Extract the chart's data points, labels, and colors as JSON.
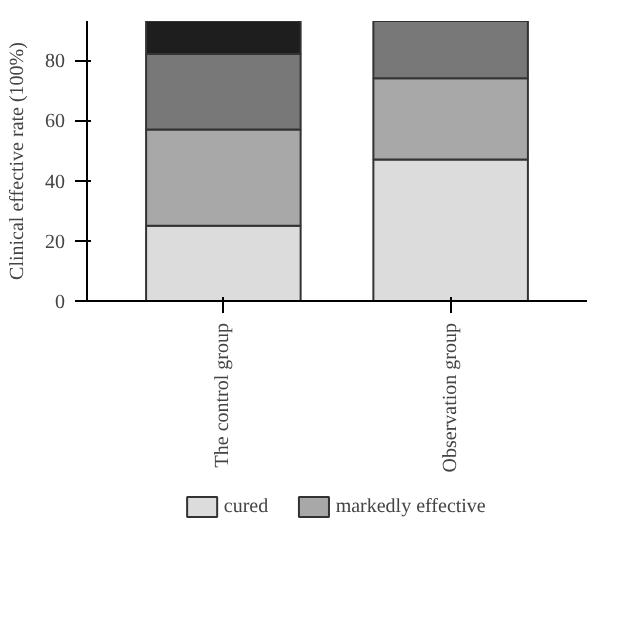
{
  "chart_data": {
    "type": "bar",
    "stacked": true,
    "ylabel": "Clinical effective rate (100%)",
    "categories": [
      "The control group",
      "Observation group"
    ],
    "series": [
      {
        "name": "cured",
        "color": "#dcdcdc",
        "values": [
          25,
          47
        ]
      },
      {
        "name": "markedly effective",
        "color": "#a8a8a8",
        "values": [
          32,
          27
        ]
      },
      {
        "color": "#787878",
        "values": [
          25,
          19
        ]
      },
      {
        "color": "#1e1e1e",
        "values": [
          11,
          null
        ]
      }
    ],
    "ylim": [
      0,
      93
    ],
    "yticks": [
      0,
      20,
      40,
      60,
      80
    ],
    "grid": false,
    "legend": "bottom"
  }
}
